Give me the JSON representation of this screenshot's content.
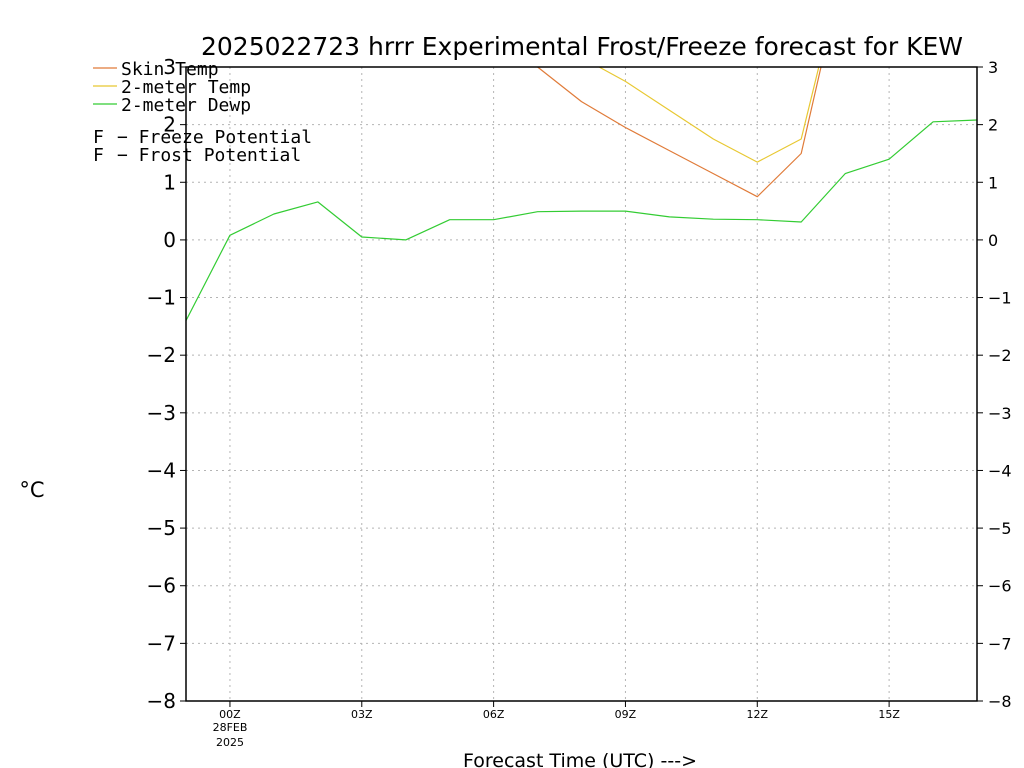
{
  "chart_data": {
    "type": "line",
    "title": "2025022723 hrrr Experimental Frost/Freeze forecast for KEW",
    "xlabel": "Forecast Time (UTC) --->",
    "ylabel": "°C",
    "x_hours": [
      -1,
      0,
      1,
      2,
      3,
      4,
      5,
      6,
      7,
      8,
      9,
      10,
      11,
      12,
      13,
      14,
      15,
      16,
      17
    ],
    "x_range": [
      -1,
      17
    ],
    "ylim": [
      -8,
      3
    ],
    "yticks": [
      "−8",
      "−7",
      "−6",
      "−5",
      "−4",
      "−3",
      "−2",
      "−1",
      "0",
      "1",
      "2",
      "3"
    ],
    "xticks": [
      {
        "hour": 0,
        "label": "00Z"
      },
      {
        "hour": 3,
        "label": "03Z"
      },
      {
        "hour": 6,
        "label": "06Z"
      },
      {
        "hour": 9,
        "label": "09Z"
      },
      {
        "hour": 12,
        "label": "12Z"
      },
      {
        "hour": 15,
        "label": "15Z"
      }
    ],
    "date_label": [
      "28FEB",
      "2025"
    ],
    "grid": true,
    "legend_position": "top-left",
    "series": [
      {
        "name": "Skin Temp",
        "color": "#e07b39",
        "points": [
          [
            7,
            3.0
          ],
          [
            8,
            2.4
          ],
          [
            9,
            1.95
          ],
          [
            10,
            1.55
          ],
          [
            11,
            1.15
          ],
          [
            12,
            0.75
          ],
          [
            13,
            1.5
          ],
          [
            13.45,
            3.0
          ]
        ]
      },
      {
        "name": "2-meter Temp",
        "color": "#e8c832",
        "points": [
          [
            8.4,
            3.0
          ],
          [
            9,
            2.75
          ],
          [
            10,
            2.25
          ],
          [
            11,
            1.75
          ],
          [
            12,
            1.35
          ],
          [
            13,
            1.75
          ],
          [
            13.4,
            3.0
          ]
        ]
      },
      {
        "name": "2-meter Dewp",
        "color": "#33cc33",
        "points": [
          [
            -1,
            -1.4
          ],
          [
            0,
            0.08
          ],
          [
            1,
            0.45
          ],
          [
            2,
            0.66
          ],
          [
            3,
            0.05
          ],
          [
            4,
            0.0
          ],
          [
            5,
            0.35
          ],
          [
            6,
            0.35
          ],
          [
            7,
            0.49
          ],
          [
            8,
            0.5
          ],
          [
            9,
            0.5
          ],
          [
            10,
            0.4
          ],
          [
            11,
            0.36
          ],
          [
            12,
            0.35
          ],
          [
            13,
            0.31
          ],
          [
            14,
            1.15
          ],
          [
            15,
            1.4
          ],
          [
            16,
            2.05
          ],
          [
            17,
            2.08
          ]
        ]
      }
    ],
    "potential_legend": [
      {
        "letter": "F",
        "text": "− Freeze Potential",
        "color": "#cc3399"
      },
      {
        "letter": "F",
        "text": "− Frost Potential",
        "color": "#5566ee"
      }
    ]
  }
}
